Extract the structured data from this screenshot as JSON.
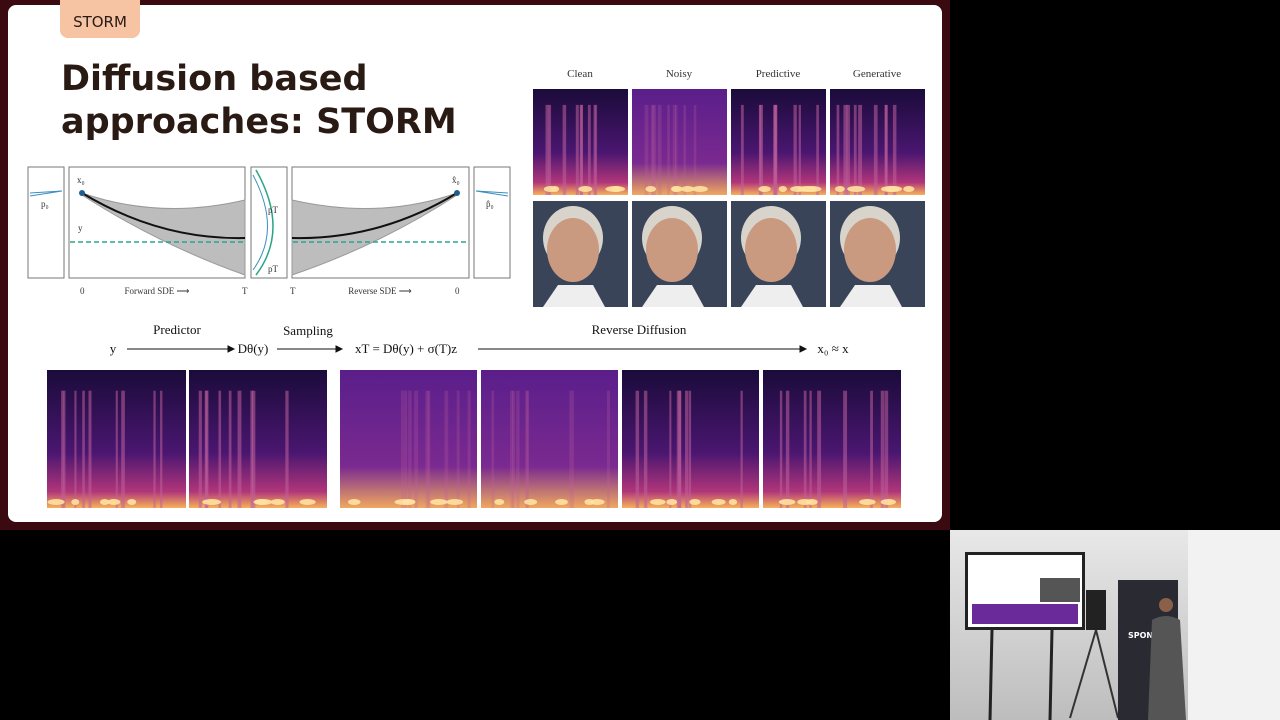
{
  "slide": {
    "tag": "STORM",
    "title_lines": [
      "Diffusion based",
      "approaches: STORM"
    ],
    "sde_diagram": {
      "forward_label": "Forward SDE ⟶",
      "reverse_label": "Reverse SDE ⟶",
      "forward_start": "0",
      "forward_end": "T",
      "reverse_start": "T",
      "reverse_end": "0",
      "start_point": "x₀",
      "end_point": "x̂₀",
      "mean_label": "y",
      "left_density": "p₀",
      "mid_density_top": "pT",
      "mid_density_bottom": "pT",
      "right_density": "p̂₀"
    },
    "comparison": {
      "columns": [
        "Clean",
        "Noisy",
        "Predictive",
        "Generative"
      ]
    },
    "pipeline": {
      "steps": [
        "Predictor",
        "Sampling",
        "Reverse Diffusion"
      ],
      "input": "y",
      "prediction": "Dθ(y)",
      "noisy_start": "xT = Dθ(y) + σ(T)z",
      "output": "x₀ ≈ x"
    }
  },
  "camera": {
    "banner_text": "SPON"
  }
}
